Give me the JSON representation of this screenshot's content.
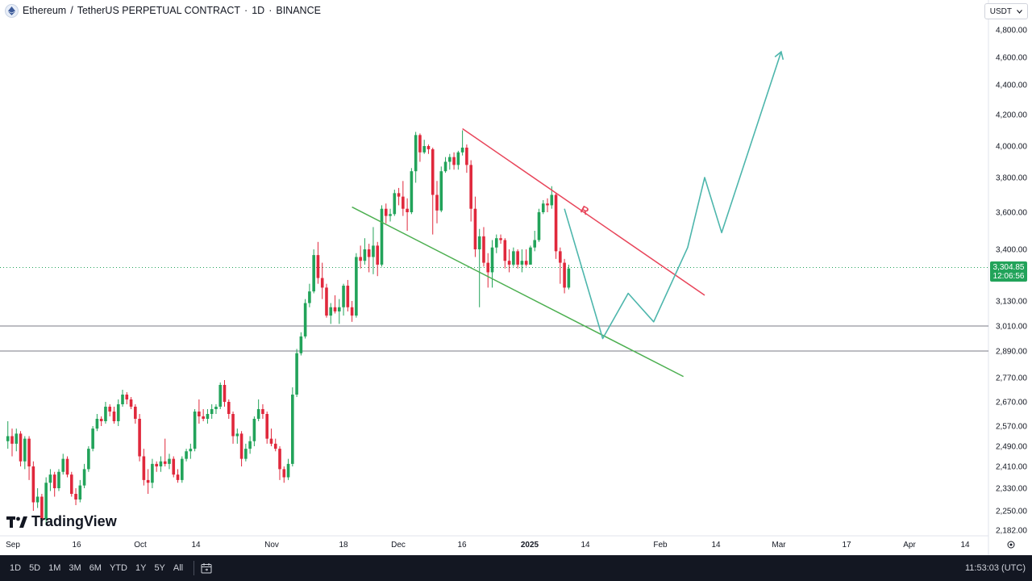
{
  "header": {
    "symbol": "Ethereum",
    "pair_rest": "TetherUS PERPETUAL CONTRACT",
    "interval": "1D",
    "exchange": "BINANCE",
    "separator": "·",
    "slash": "/"
  },
  "currency_button": {
    "label": "USDT"
  },
  "price_tag": {
    "price": "3,304.85",
    "countdown": "12:06:56"
  },
  "watermark": {
    "text": "TradingView"
  },
  "toolbar": {
    "ranges": [
      "1D",
      "5D",
      "1M",
      "3M",
      "6M",
      "YTD",
      "1Y",
      "5Y",
      "All"
    ],
    "clock": "11:53:03 (UTC)"
  },
  "colors": {
    "up": "#22a35a",
    "down": "#e0283c",
    "resistance": "#e8455a",
    "support": "#4caf50",
    "projection": "#4db6ac",
    "axis_text": "#131722"
  },
  "chart_data": {
    "type": "candlestick",
    "y_axis_labels": [
      "4,800.00",
      "4,600.00",
      "4,400.00",
      "4,200.00",
      "4,000.00",
      "3,800.00",
      "3,600.00",
      "3,400.00",
      "3,130.00",
      "3,010.00",
      "2,890.00",
      "2,770.00",
      "2,670.00",
      "2,570.00",
      "2,490.00",
      "2,410.00",
      "2,330.00",
      "2,250.00",
      "2,182.00"
    ],
    "x_axis_labels": [
      "Sep",
      "16",
      "Oct",
      "14",
      "Nov",
      "18",
      "Dec",
      "16",
      "2025",
      "14",
      "Feb",
      "14",
      "Mar",
      "17",
      "Apr",
      "14"
    ],
    "horizontal_levels": [
      3010,
      2890
    ],
    "current_price": 3304.85,
    "resistance_label": "R",
    "resistance_line": [
      [
        "2024-12-16",
        4110
      ],
      [
        "2025-02-11",
        3160
      ]
    ],
    "support_line": [
      [
        "2024-11-20",
        3630
      ],
      [
        "2025-02-06",
        2775
      ]
    ],
    "projection_path": [
      [
        "2025-01-09",
        3620
      ],
      [
        "2025-01-18",
        2950
      ],
      [
        "2025-01-24",
        3170
      ],
      [
        "2025-01-30",
        3030
      ],
      [
        "2025-02-07",
        3410
      ],
      [
        "2025-02-11",
        3800
      ],
      [
        "2025-02-15",
        3490
      ],
      [
        "2025-03-01",
        4640
      ]
    ],
    "candles": [
      [
        "2024-08-31",
        2510,
        2590,
        2480,
        2530
      ],
      [
        "2024-09-01",
        2530,
        2560,
        2450,
        2500
      ],
      [
        "2024-09-02",
        2500,
        2560,
        2470,
        2540
      ],
      [
        "2024-09-03",
        2540,
        2550,
        2410,
        2430
      ],
      [
        "2024-09-04",
        2430,
        2530,
        2400,
        2520
      ],
      [
        "2024-09-05",
        2520,
        2530,
        2360,
        2410
      ],
      [
        "2024-09-06",
        2410,
        2430,
        2250,
        2280
      ],
      [
        "2024-09-07",
        2280,
        2330,
        2260,
        2300
      ],
      [
        "2024-09-08",
        2300,
        2310,
        2200,
        2220
      ],
      [
        "2024-09-09",
        2220,
        2370,
        2200,
        2350
      ],
      [
        "2024-09-10",
        2350,
        2400,
        2320,
        2380
      ],
      [
        "2024-09-11",
        2380,
        2390,
        2300,
        2330
      ],
      [
        "2024-09-12",
        2330,
        2400,
        2320,
        2390
      ],
      [
        "2024-09-13",
        2390,
        2460,
        2380,
        2440
      ],
      [
        "2024-09-14",
        2440,
        2450,
        2370,
        2380
      ],
      [
        "2024-09-15",
        2380,
        2390,
        2300,
        2310
      ],
      [
        "2024-09-16",
        2310,
        2330,
        2270,
        2290
      ],
      [
        "2024-09-17",
        2290,
        2360,
        2280,
        2340
      ],
      [
        "2024-09-18",
        2340,
        2420,
        2330,
        2400
      ],
      [
        "2024-09-19",
        2400,
        2490,
        2390,
        2480
      ],
      [
        "2024-09-20",
        2480,
        2570,
        2470,
        2560
      ],
      [
        "2024-09-21",
        2560,
        2620,
        2550,
        2600
      ],
      [
        "2024-09-22",
        2600,
        2610,
        2570,
        2590
      ],
      [
        "2024-09-23",
        2590,
        2670,
        2580,
        2650
      ],
      [
        "2024-09-24",
        2650,
        2660,
        2610,
        2630
      ],
      [
        "2024-09-25",
        2630,
        2650,
        2580,
        2590
      ],
      [
        "2024-09-26",
        2590,
        2680,
        2570,
        2660
      ],
      [
        "2024-09-27",
        2660,
        2720,
        2650,
        2700
      ],
      [
        "2024-09-28",
        2700,
        2710,
        2660,
        2680
      ],
      [
        "2024-09-29",
        2680,
        2690,
        2640,
        2650
      ],
      [
        "2024-09-30",
        2650,
        2660,
        2580,
        2600
      ],
      [
        "2024-10-01",
        2600,
        2620,
        2430,
        2450
      ],
      [
        "2024-10-02",
        2450,
        2480,
        2340,
        2360
      ],
      [
        "2024-10-03",
        2360,
        2400,
        2310,
        2350
      ],
      [
        "2024-10-04",
        2350,
        2440,
        2330,
        2420
      ],
      [
        "2024-10-05",
        2420,
        2430,
        2390,
        2410
      ],
      [
        "2024-10-06",
        2410,
        2450,
        2390,
        2430
      ],
      [
        "2024-10-07",
        2430,
        2520,
        2410,
        2420
      ],
      [
        "2024-10-08",
        2420,
        2460,
        2400,
        2440
      ],
      [
        "2024-10-09",
        2440,
        2450,
        2370,
        2380
      ],
      [
        "2024-10-10",
        2380,
        2400,
        2350,
        2360
      ],
      [
        "2024-10-11",
        2360,
        2450,
        2350,
        2440
      ],
      [
        "2024-10-12",
        2440,
        2480,
        2430,
        2470
      ],
      [
        "2024-10-13",
        2470,
        2500,
        2440,
        2480
      ],
      [
        "2024-10-14",
        2480,
        2640,
        2470,
        2630
      ],
      [
        "2024-10-15",
        2630,
        2680,
        2580,
        2610
      ],
      [
        "2024-10-16",
        2610,
        2640,
        2590,
        2600
      ],
      [
        "2024-10-17",
        2600,
        2640,
        2580,
        2620
      ],
      [
        "2024-10-18",
        2620,
        2660,
        2600,
        2640
      ],
      [
        "2024-10-19",
        2640,
        2660,
        2620,
        2650
      ],
      [
        "2024-10-20",
        2650,
        2750,
        2640,
        2740
      ],
      [
        "2024-10-21",
        2740,
        2760,
        2650,
        2670
      ],
      [
        "2024-10-22",
        2670,
        2680,
        2600,
        2620
      ],
      [
        "2024-10-23",
        2620,
        2630,
        2500,
        2530
      ],
      [
        "2024-10-24",
        2530,
        2560,
        2500,
        2540
      ],
      [
        "2024-10-25",
        2540,
        2550,
        2410,
        2440
      ],
      [
        "2024-10-26",
        2440,
        2500,
        2430,
        2480
      ],
      [
        "2024-10-27",
        2480,
        2530,
        2460,
        2510
      ],
      [
        "2024-10-28",
        2510,
        2610,
        2490,
        2600
      ],
      [
        "2024-10-29",
        2600,
        2680,
        2590,
        2640
      ],
      [
        "2024-10-30",
        2640,
        2660,
        2600,
        2620
      ],
      [
        "2024-10-31",
        2620,
        2630,
        2500,
        2520
      ],
      [
        "2024-11-01",
        2520,
        2560,
        2490,
        2500
      ],
      [
        "2024-11-02",
        2500,
        2520,
        2470,
        2480
      ],
      [
        "2024-11-03",
        2480,
        2490,
        2360,
        2400
      ],
      [
        "2024-11-04",
        2400,
        2410,
        2350,
        2370
      ],
      [
        "2024-11-05",
        2370,
        2440,
        2360,
        2420
      ],
      [
        "2024-11-06",
        2420,
        2730,
        2410,
        2700
      ],
      [
        "2024-11-07",
        2700,
        2900,
        2690,
        2880
      ],
      [
        "2024-11-08",
        2880,
        2980,
        2870,
        2960
      ],
      [
        "2024-11-09",
        2960,
        3140,
        2950,
        3120
      ],
      [
        "2024-11-10",
        3120,
        3220,
        3100,
        3180
      ],
      [
        "2024-11-11",
        3180,
        3400,
        3170,
        3370
      ],
      [
        "2024-11-12",
        3370,
        3440,
        3220,
        3250
      ],
      [
        "2024-11-13",
        3250,
        3330,
        3140,
        3200
      ],
      [
        "2024-11-14",
        3200,
        3220,
        3050,
        3060
      ],
      [
        "2024-11-15",
        3060,
        3120,
        3020,
        3100
      ],
      [
        "2024-11-16",
        3100,
        3160,
        3070,
        3080
      ],
      [
        "2024-11-17",
        3080,
        3140,
        3020,
        3100
      ],
      [
        "2024-11-18",
        3100,
        3220,
        3060,
        3210
      ],
      [
        "2024-11-19",
        3210,
        3240,
        3080,
        3100
      ],
      [
        "2024-11-20",
        3100,
        3130,
        3030,
        3060
      ],
      [
        "2024-11-21",
        3060,
        3380,
        3050,
        3360
      ],
      [
        "2024-11-22",
        3360,
        3420,
        3300,
        3340
      ],
      [
        "2024-11-23",
        3340,
        3460,
        3320,
        3400
      ],
      [
        "2024-11-24",
        3400,
        3430,
        3280,
        3360
      ],
      [
        "2024-11-25",
        3360,
        3520,
        3270,
        3420
      ],
      [
        "2024-11-26",
        3420,
        3440,
        3260,
        3320
      ],
      [
        "2024-11-27",
        3320,
        3640,
        3310,
        3620
      ],
      [
        "2024-11-28",
        3620,
        3650,
        3540,
        3580
      ],
      [
        "2024-11-29",
        3580,
        3620,
        3550,
        3590
      ],
      [
        "2024-11-30",
        3590,
        3730,
        3580,
        3710
      ],
      [
        "2024-12-01",
        3710,
        3740,
        3640,
        3690
      ],
      [
        "2024-12-02",
        3690,
        3780,
        3580,
        3620
      ],
      [
        "2024-12-03",
        3620,
        3680,
        3500,
        3600
      ],
      [
        "2024-12-04",
        3600,
        3860,
        3590,
        3840
      ],
      [
        "2024-12-05",
        3840,
        4090,
        3770,
        4070
      ],
      [
        "2024-12-06",
        4070,
        4080,
        3900,
        3960
      ],
      [
        "2024-12-07",
        3960,
        4040,
        3950,
        4000
      ],
      [
        "2024-12-08",
        4000,
        4010,
        3950,
        3980
      ],
      [
        "2024-12-09",
        3980,
        3990,
        3480,
        3700
      ],
      [
        "2024-12-10",
        3700,
        3780,
        3540,
        3610
      ],
      [
        "2024-12-11",
        3610,
        3870,
        3600,
        3840
      ],
      [
        "2024-12-12",
        3840,
        3930,
        3830,
        3900
      ],
      [
        "2024-12-13",
        3900,
        3950,
        3850,
        3930
      ],
      [
        "2024-12-14",
        3930,
        3960,
        3850,
        3880
      ],
      [
        "2024-12-15",
        3880,
        3970,
        3850,
        3960
      ],
      [
        "2024-12-16",
        3960,
        4100,
        3940,
        3990
      ],
      [
        "2024-12-17",
        3990,
        4010,
        3830,
        3880
      ],
      [
        "2024-12-18",
        3880,
        3910,
        3550,
        3620
      ],
      [
        "2024-12-19",
        3620,
        3690,
        3360,
        3400
      ],
      [
        "2024-12-20",
        3400,
        3510,
        3100,
        3470
      ],
      [
        "2024-12-21",
        3470,
        3520,
        3310,
        3330
      ],
      [
        "2024-12-22",
        3330,
        3380,
        3200,
        3280
      ],
      [
        "2024-12-23",
        3280,
        3450,
        3200,
        3410
      ],
      [
        "2024-12-24",
        3410,
        3480,
        3380,
        3460
      ],
      [
        "2024-12-25",
        3460,
        3480,
        3430,
        3450
      ],
      [
        "2024-12-26",
        3450,
        3460,
        3300,
        3340
      ],
      [
        "2024-12-27",
        3340,
        3400,
        3280,
        3320
      ],
      [
        "2024-12-28",
        3320,
        3410,
        3310,
        3390
      ],
      [
        "2024-12-29",
        3390,
        3400,
        3300,
        3320
      ],
      [
        "2024-12-30",
        3320,
        3400,
        3280,
        3340
      ],
      [
        "2024-12-31",
        3340,
        3400,
        3310,
        3320
      ],
      [
        "2025-01-01",
        3320,
        3420,
        3320,
        3410
      ],
      [
        "2025-01-02",
        3410,
        3500,
        3390,
        3450
      ],
      [
        "2025-01-03",
        3450,
        3620,
        3440,
        3600
      ],
      [
        "2025-01-04",
        3600,
        3670,
        3590,
        3650
      ],
      [
        "2025-01-05",
        3650,
        3680,
        3600,
        3640
      ],
      [
        "2025-01-06",
        3640,
        3750,
        3620,
        3700
      ],
      [
        "2025-01-07",
        3700,
        3710,
        3350,
        3390
      ],
      [
        "2025-01-08",
        3390,
        3410,
        3220,
        3330
      ],
      [
        "2025-01-09",
        3330,
        3350,
        3170,
        3200
      ],
      [
        "2025-01-10",
        3200,
        3320,
        3190,
        3300
      ]
    ]
  }
}
